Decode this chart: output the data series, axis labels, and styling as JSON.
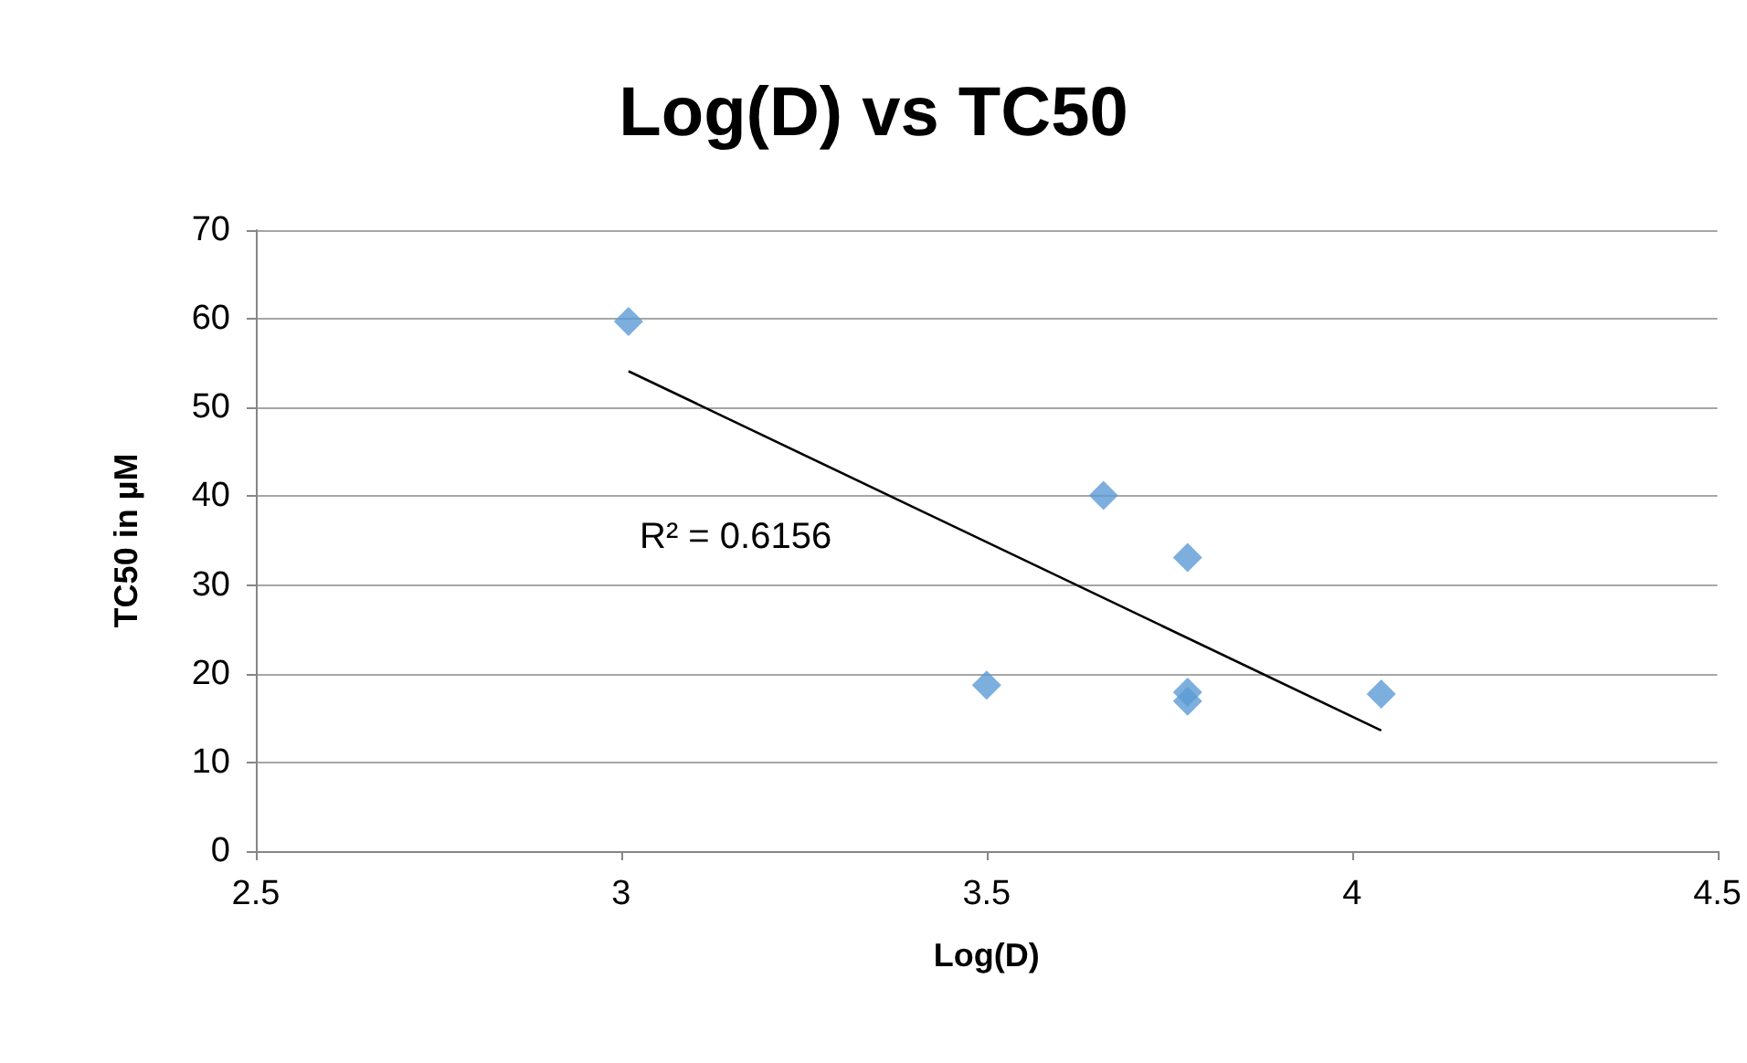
{
  "chart_data": {
    "type": "scatter",
    "title": "Log(D) vs TC50",
    "xlabel": "Log(D)",
    "ylabel": "TC50 in µM",
    "xlim": [
      2.5,
      4.5
    ],
    "xticks": [
      2.5,
      3,
      3.5,
      4,
      4.5
    ],
    "ylim": [
      0,
      70
    ],
    "yticks": [
      0,
      10,
      20,
      30,
      40,
      50,
      60,
      70
    ],
    "grid": "y",
    "marker": "diamond",
    "series": [
      {
        "color": "#5b9bd5",
        "x": [
          3.01,
          3.66,
          3.775,
          3.5,
          3.775,
          3.775,
          4.04
        ],
        "values": [
          59.7,
          40.1,
          33.1,
          18.7,
          17.9,
          16.9,
          17.7
        ]
      },
      {
        "type": "line",
        "color": "#000000",
        "x": [
          3.01,
          4.04
        ],
        "values": [
          54.1,
          13.6
        ],
        "marker": "none"
      }
    ],
    "annotations": [
      "R² = 0.6156"
    ]
  }
}
